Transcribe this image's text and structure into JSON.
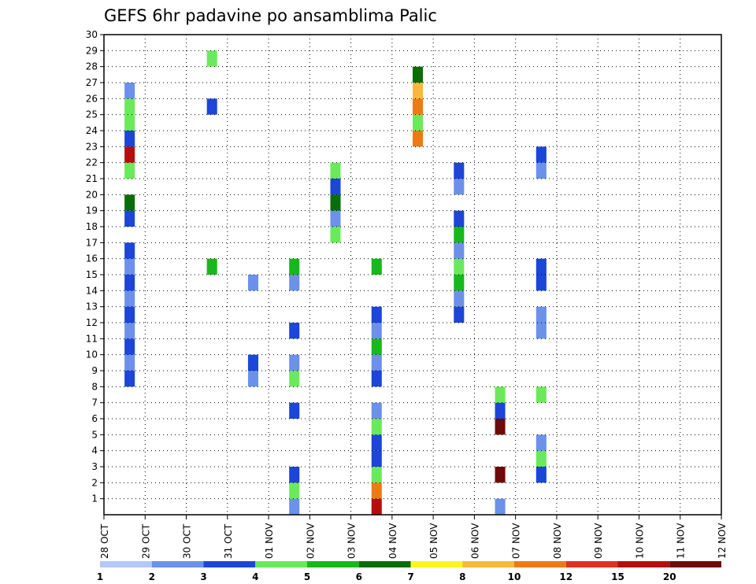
{
  "chart_data": {
    "type": "heatmap",
    "title": "GEFS 6hr padavine po ansamblima Palic",
    "xlabel": "",
    "ylabel": "",
    "x_tick_labels": [
      "28 OCT",
      "29 OCT",
      "30 OCT",
      "31 OCT",
      "01 NOV",
      "02 NOV",
      "03 NOV",
      "04 NOV",
      "05 NOV",
      "06 NOV",
      "07 NOV",
      "08 NOV",
      "09 NOV",
      "10 NOV",
      "11 NOV",
      "12 NOV"
    ],
    "y_tick_labels": [
      "1",
      "2",
      "3",
      "4",
      "5",
      "6",
      "7",
      "8",
      "9",
      "10",
      "11",
      "12",
      "13",
      "14",
      "15",
      "16",
      "17",
      "18",
      "19",
      "20",
      "21",
      "22",
      "23",
      "24",
      "25",
      "26",
      "27",
      "28",
      "29",
      "30"
    ],
    "xlim": [
      0,
      15
    ],
    "ylim": [
      0,
      30
    ],
    "grid": true,
    "colorbar": {
      "labels": [
        "1",
        "2",
        "3",
        "4",
        "5",
        "6",
        "7",
        "8",
        "10",
        "12",
        "15",
        "20"
      ],
      "colors": [
        "#b4c8f5",
        "#6c91ea",
        "#1c46d8",
        "#6aea5a",
        "#16b81c",
        "#0a6d0a",
        "#fbf71d",
        "#f8b83a",
        "#ef7a13",
        "#e0301f",
        "#b50e0e",
        "#6f0a0a"
      ]
    },
    "cells": [
      [
        0.5,
        8,
        2
      ],
      [
        0.5,
        9,
        1
      ],
      [
        0.5,
        10,
        2
      ],
      [
        0.5,
        11,
        1
      ],
      [
        0.5,
        12,
        2
      ],
      [
        0.5,
        13,
        1
      ],
      [
        0.5,
        14,
        2
      ],
      [
        0.5,
        15,
        1
      ],
      [
        0.5,
        16,
        2
      ],
      [
        0.5,
        18,
        2
      ],
      [
        0.5,
        19,
        5
      ],
      [
        0.5,
        21,
        3
      ],
      [
        0.5,
        22,
        10
      ],
      [
        0.5,
        23,
        2
      ],
      [
        0.5,
        24,
        3
      ],
      [
        0.5,
        25,
        3
      ],
      [
        0.5,
        26,
        1
      ],
      [
        2.5,
        15,
        4
      ],
      [
        2.5,
        25,
        2
      ],
      [
        2.5,
        28,
        3
      ],
      [
        3.5,
        8,
        1
      ],
      [
        3.5,
        9,
        2
      ],
      [
        3.5,
        14,
        1
      ],
      [
        4.5,
        0,
        1
      ],
      [
        4.5,
        1,
        3
      ],
      [
        4.5,
        2,
        2
      ],
      [
        4.5,
        6,
        2
      ],
      [
        4.5,
        8,
        3
      ],
      [
        4.5,
        9,
        1
      ],
      [
        4.5,
        11,
        2
      ],
      [
        4.5,
        14,
        1
      ],
      [
        4.5,
        15,
        4
      ],
      [
        5.5,
        17,
        3
      ],
      [
        5.5,
        18,
        1
      ],
      [
        5.5,
        19,
        5
      ],
      [
        5.5,
        20,
        2
      ],
      [
        5.5,
        21,
        3
      ],
      [
        6.5,
        0,
        10
      ],
      [
        6.5,
        1,
        8
      ],
      [
        6.5,
        2,
        3
      ],
      [
        6.5,
        3,
        2
      ],
      [
        6.5,
        4,
        2
      ],
      [
        6.5,
        5,
        3
      ],
      [
        6.5,
        6,
        1
      ],
      [
        6.5,
        8,
        2
      ],
      [
        6.5,
        9,
        1
      ],
      [
        6.5,
        10,
        4
      ],
      [
        6.5,
        11,
        1
      ],
      [
        6.5,
        12,
        2
      ],
      [
        6.5,
        15,
        4
      ],
      [
        7.5,
        23,
        8
      ],
      [
        7.5,
        24,
        3
      ],
      [
        7.5,
        25,
        8
      ],
      [
        7.5,
        26,
        7
      ],
      [
        7.5,
        27,
        5
      ],
      [
        8.5,
        12,
        2
      ],
      [
        8.5,
        13,
        1
      ],
      [
        8.5,
        14,
        4
      ],
      [
        8.5,
        15,
        3
      ],
      [
        8.5,
        16,
        1
      ],
      [
        8.5,
        17,
        4
      ],
      [
        8.5,
        18,
        2
      ],
      [
        8.5,
        20,
        1
      ],
      [
        8.5,
        21,
        2
      ],
      [
        9.5,
        0,
        1
      ],
      [
        9.5,
        2,
        11
      ],
      [
        9.5,
        5,
        11
      ],
      [
        9.5,
        6,
        2
      ],
      [
        9.5,
        7,
        3
      ],
      [
        10.5,
        2,
        2
      ],
      [
        10.5,
        3,
        3
      ],
      [
        10.5,
        4,
        1
      ],
      [
        10.5,
        7,
        3
      ],
      [
        10.5,
        11,
        1
      ],
      [
        10.5,
        12,
        1
      ],
      [
        10.5,
        14,
        2
      ],
      [
        10.5,
        15,
        2
      ],
      [
        10.5,
        21,
        1
      ],
      [
        10.5,
        22,
        2
      ]
    ],
    "note": ""
  }
}
